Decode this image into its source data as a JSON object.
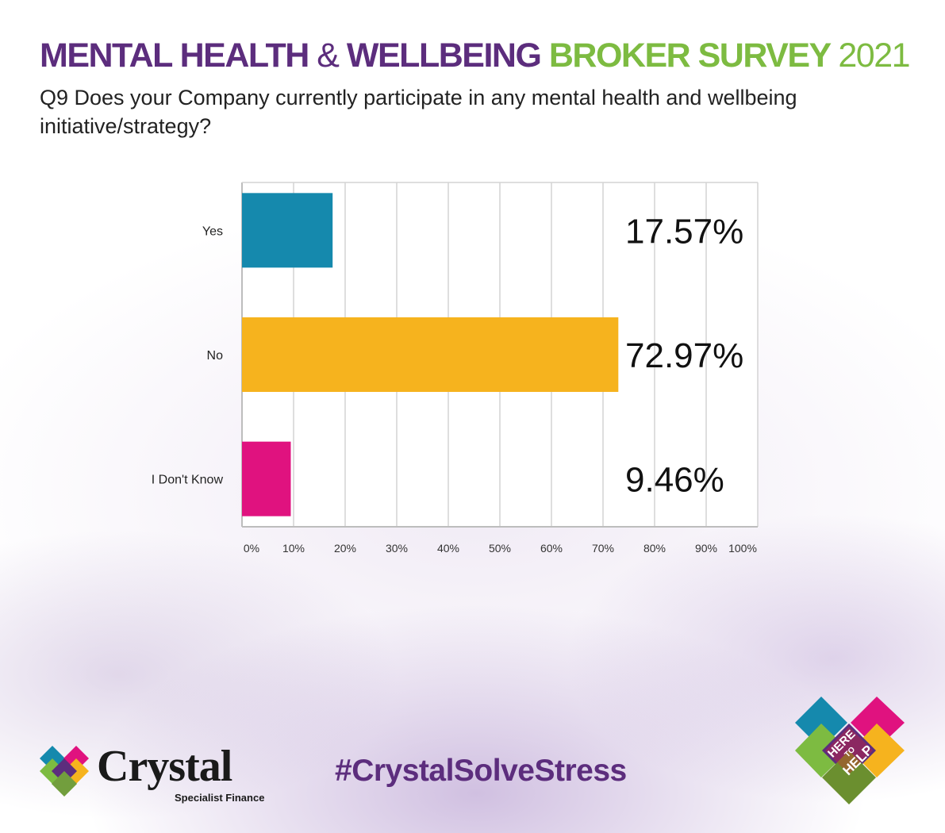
{
  "header": {
    "title_part1": "MENTAL HEALTH",
    "title_amp": "&",
    "title_part2": "WELLBEING",
    "title_part3": "BROKER SURVEY",
    "title_year": "2021",
    "question": "Q9 Does your Company currently participate in any mental health and wellbeing initiative/strategy?"
  },
  "chart_data": {
    "type": "bar",
    "orientation": "horizontal",
    "categories": [
      "Yes",
      "No",
      "I Don't Know"
    ],
    "values": [
      17.57,
      72.97,
      9.46
    ],
    "value_labels": [
      "17.57%",
      "72.97%",
      "9.46%"
    ],
    "colors": [
      "#1589ad",
      "#f6b31e",
      "#e0127f"
    ],
    "xlim": [
      0,
      100
    ],
    "x_ticks": [
      "0%",
      "10%",
      "20%",
      "30%",
      "40%",
      "50%",
      "60%",
      "70%",
      "80%",
      "90%",
      "100%"
    ],
    "grid": true
  },
  "footer": {
    "hashtag": "#CrystalSolveStress",
    "logo_name": "Crystal",
    "logo_tagline": "Specialist Finance",
    "badge_text": [
      "HERE",
      "TO",
      "HELP"
    ]
  },
  "colors": {
    "purple": "#5c2d7d",
    "green": "#7dbb41",
    "teal": "#1589ad",
    "magenta": "#e0127f",
    "amber": "#f6b31e"
  }
}
